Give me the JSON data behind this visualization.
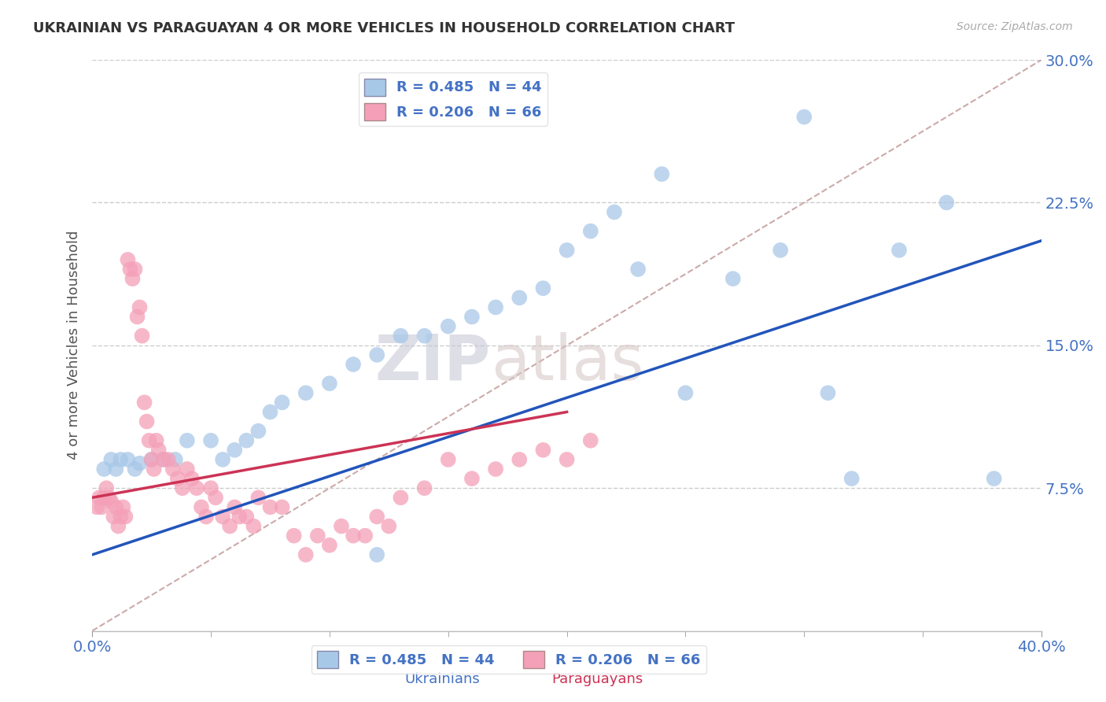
{
  "title": "UKRAINIAN VS PARAGUAYAN 4 OR MORE VEHICLES IN HOUSEHOLD CORRELATION CHART",
  "source": "Source: ZipAtlas.com",
  "xlabel_ukrainians": "Ukrainians",
  "xlabel_paraguayans": "Paraguayans",
  "ylabel": "4 or more Vehicles in Household",
  "xlim": [
    0.0,
    0.4
  ],
  "ylim": [
    0.0,
    0.3
  ],
  "xticks": [
    0.0,
    0.4
  ],
  "xtick_labels": [
    "0.0%",
    "40.0%"
  ],
  "yticks": [
    0.075,
    0.15,
    0.225,
    0.3
  ],
  "ytick_labels": [
    "7.5%",
    "15.0%",
    "22.5%",
    "30.0%"
  ],
  "legend_blue_label": "R = 0.485   N = 44",
  "legend_pink_label": "R = 0.206   N = 66",
  "blue_color": "#a8c8e8",
  "pink_color": "#f4a0b8",
  "blue_line_color": "#2255bb",
  "pink_line_color": "#cc3355",
  "dashed_line_color": "#ccaaaa",
  "watermark_zip": "ZIP",
  "watermark_atlas": "atlas",
  "blue_R": 0.485,
  "blue_N": 44,
  "pink_R": 0.206,
  "pink_N": 66,
  "blue_scatter_x": [
    0.005,
    0.008,
    0.01,
    0.012,
    0.015,
    0.018,
    0.02,
    0.025,
    0.03,
    0.035,
    0.04,
    0.05,
    0.055,
    0.06,
    0.065,
    0.07,
    0.075,
    0.08,
    0.09,
    0.1,
    0.11,
    0.12,
    0.13,
    0.14,
    0.15,
    0.16,
    0.17,
    0.18,
    0.19,
    0.2,
    0.21,
    0.22,
    0.23,
    0.24,
    0.25,
    0.27,
    0.29,
    0.3,
    0.31,
    0.32,
    0.34,
    0.36,
    0.38,
    0.12
  ],
  "blue_scatter_y": [
    0.085,
    0.09,
    0.085,
    0.09,
    0.09,
    0.085,
    0.088,
    0.09,
    0.09,
    0.09,
    0.1,
    0.1,
    0.09,
    0.095,
    0.1,
    0.105,
    0.115,
    0.12,
    0.125,
    0.13,
    0.14,
    0.145,
    0.155,
    0.155,
    0.16,
    0.165,
    0.17,
    0.175,
    0.18,
    0.2,
    0.21,
    0.22,
    0.19,
    0.24,
    0.125,
    0.185,
    0.2,
    0.27,
    0.125,
    0.08,
    0.2,
    0.225,
    0.08,
    0.04
  ],
  "pink_scatter_x": [
    0.002,
    0.003,
    0.004,
    0.005,
    0.006,
    0.007,
    0.008,
    0.009,
    0.01,
    0.011,
    0.012,
    0.013,
    0.014,
    0.015,
    0.016,
    0.017,
    0.018,
    0.019,
    0.02,
    0.021,
    0.022,
    0.023,
    0.024,
    0.025,
    0.026,
    0.027,
    0.028,
    0.03,
    0.032,
    0.034,
    0.036,
    0.038,
    0.04,
    0.042,
    0.044,
    0.046,
    0.048,
    0.05,
    0.052,
    0.055,
    0.058,
    0.06,
    0.062,
    0.065,
    0.068,
    0.07,
    0.075,
    0.08,
    0.085,
    0.09,
    0.095,
    0.1,
    0.105,
    0.11,
    0.115,
    0.12,
    0.125,
    0.13,
    0.14,
    0.15,
    0.16,
    0.17,
    0.18,
    0.19,
    0.2,
    0.21
  ],
  "pink_scatter_y": [
    0.065,
    0.07,
    0.065,
    0.07,
    0.075,
    0.07,
    0.068,
    0.06,
    0.065,
    0.055,
    0.06,
    0.065,
    0.06,
    0.195,
    0.19,
    0.185,
    0.19,
    0.165,
    0.17,
    0.155,
    0.12,
    0.11,
    0.1,
    0.09,
    0.085,
    0.1,
    0.095,
    0.09,
    0.09,
    0.085,
    0.08,
    0.075,
    0.085,
    0.08,
    0.075,
    0.065,
    0.06,
    0.075,
    0.07,
    0.06,
    0.055,
    0.065,
    0.06,
    0.06,
    0.055,
    0.07,
    0.065,
    0.065,
    0.05,
    0.04,
    0.05,
    0.045,
    0.055,
    0.05,
    0.05,
    0.06,
    0.055,
    0.07,
    0.075,
    0.09,
    0.08,
    0.085,
    0.09,
    0.095,
    0.09,
    0.1
  ],
  "blue_line_x": [
    0.0,
    0.4
  ],
  "blue_line_y_start": 0.04,
  "blue_line_y_end": 0.205,
  "pink_line_x": [
    0.0,
    0.2
  ],
  "pink_line_y_start": 0.07,
  "pink_line_y_end": 0.115,
  "dash_line_x": [
    0.0,
    0.4
  ],
  "dash_line_y_start": 0.0,
  "dash_line_y_end": 0.3
}
